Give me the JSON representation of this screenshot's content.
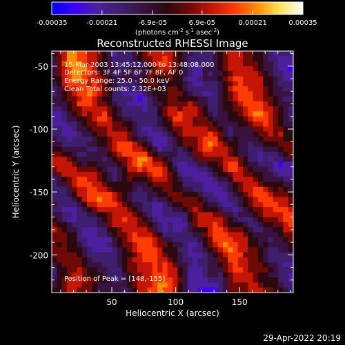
{
  "colorbar": {
    "ticks": [
      "-0.00035",
      "-0.00021",
      "-6.9e-05",
      "6.9e-05",
      "0.00021",
      "0.00035"
    ],
    "tick_values": [
      -0.00035,
      -0.00021,
      -6.9e-05,
      6.9e-05,
      0.00021,
      0.00035
    ],
    "unit_parts": [
      "(photons cm",
      "-2",
      " s",
      "-1",
      " asec",
      "-2",
      ")"
    ],
    "range": [
      -0.00035,
      0.00035
    ]
  },
  "plot": {
    "title": "Reconstructed RHESSI Image",
    "info_lines": [
      "15-Mar-2003 13:45:12.000 to 13:48:08.000",
      "Detectors: 3F 4F 5F 6F 7F 8F, AF 0",
      "Energy Range: 25.0 - 50.0 keV",
      "Clean    Total counts: 2.32E+03"
    ],
    "peak_text": "Position of Peak = [148,-155]",
    "xlabel": "Heliocentric X (arcsec)",
    "ylabel": "Heliocentric Y (arcsec)",
    "x_ticks": [
      "50",
      "100",
      "150"
    ],
    "x_tick_values": [
      50,
      100,
      150
    ],
    "y_ticks": [
      "-50",
      "-100",
      "-150",
      "-200"
    ],
    "y_tick_values": [
      -50,
      -100,
      -150,
      -200
    ],
    "x_range": [
      3,
      192
    ],
    "y_range": [
      -230,
      -38
    ]
  },
  "footer": {
    "timestamp": "29-Apr-2022 20:19"
  },
  "colors": {
    "background": "#000000",
    "text": "#ffffff",
    "cmap": [
      "#0000ff",
      "#3c00ff",
      "#4d1f9e",
      "#3d1f6e",
      "#3a1240",
      "#2a0a10",
      "#6e0a05",
      "#c41505",
      "#ff3c00",
      "#ff8c00",
      "#ffe65a",
      "#ffffff"
    ]
  }
}
